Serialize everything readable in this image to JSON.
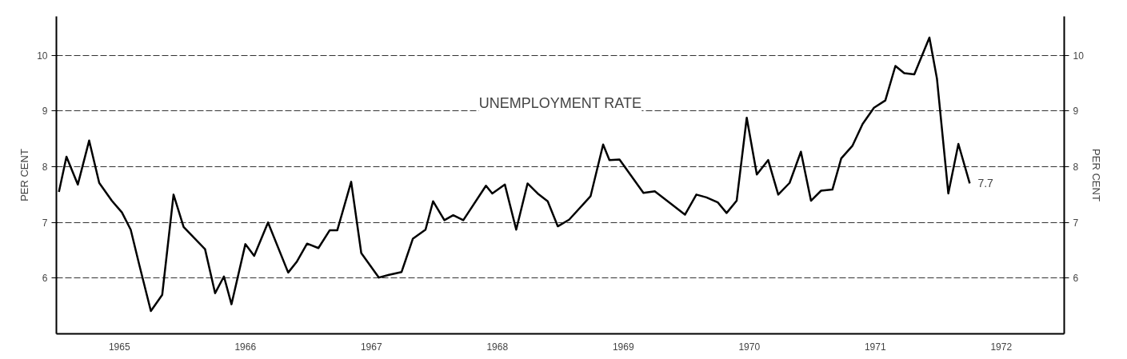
{
  "chart_data": {
    "type": "line",
    "ylabel": "PER CENT",
    "y2label": "PER CENT",
    "annotations": [
      "UNEMPLOYMENT RATE",
      {
        "text": "7.7",
        "x": 1972.25,
        "y": 7.7
      }
    ],
    "xlim": [
      1965,
      1973
    ],
    "xticks": [
      {
        "value": 1965.5,
        "label": "1965"
      },
      {
        "value": 1966.5,
        "label": "1966"
      },
      {
        "value": 1967.5,
        "label": "1967"
      },
      {
        "value": 1968.5,
        "label": "1968"
      },
      {
        "value": 1969.5,
        "label": "1969"
      },
      {
        "value": 1970.5,
        "label": "1970"
      },
      {
        "value": 1971.5,
        "label": "1971"
      },
      {
        "value": 1972.5,
        "label": "1972"
      }
    ],
    "ylim": [
      5,
      10.7
    ],
    "yticks": [
      6,
      7,
      8,
      9,
      10
    ],
    "y2lim": [
      5,
      10.7
    ],
    "y2ticks": [
      6,
      7,
      8,
      9,
      10
    ],
    "grid": "y",
    "marker": "none",
    "line_style": "solid",
    "series": [
      {
        "color": "#000000",
        "x": [
          1965.02,
          1965.08,
          1965.17,
          1965.26,
          1965.34,
          1965.44,
          1965.52,
          1965.59,
          1965.66,
          1965.75,
          1965.84,
          1965.93,
          1966.01,
          1966.18,
          1966.26,
          1966.33,
          1966.39,
          1966.5,
          1966.57,
          1966.68,
          1966.84,
          1966.91,
          1966.99,
          1967.08,
          1967.17,
          1967.23,
          1967.34,
          1967.42,
          1967.56,
          1967.64,
          1967.74,
          1967.83,
          1967.93,
          1967.99,
          1968.08,
          1968.15,
          1968.23,
          1968.41,
          1968.46,
          1968.56,
          1968.65,
          1968.74,
          1968.82,
          1968.9,
          1968.98,
          1969.07,
          1969.24,
          1969.34,
          1969.39,
          1969.47,
          1969.66,
          1969.75,
          1969.99,
          1970.08,
          1970.16,
          1970.25,
          1970.32,
          1970.4,
          1970.48,
          1970.56,
          1970.65,
          1970.73,
          1970.82,
          1970.91,
          1970.99,
          1971.07,
          1971.16,
          1971.23,
          1971.32,
          1971.4,
          1971.49,
          1971.58,
          1971.66,
          1971.73,
          1971.81,
          1971.93,
          1971.99,
          1972.08,
          1972.16,
          1972.25
        ],
        "values": [
          7.55,
          8.18,
          7.68,
          8.47,
          7.71,
          7.39,
          7.18,
          6.87,
          6.22,
          5.41,
          5.7,
          7.5,
          6.92,
          6.52,
          5.73,
          6.03,
          5.53,
          6.61,
          6.4,
          7.0,
          6.1,
          6.3,
          6.62,
          6.54,
          6.86,
          6.86,
          7.73,
          6.45,
          6.01,
          6.06,
          6.11,
          6.71,
          6.87,
          7.38,
          7.04,
          7.13,
          7.04,
          7.66,
          7.52,
          7.68,
          6.87,
          7.7,
          7.52,
          7.38,
          6.93,
          7.05,
          7.47,
          8.4,
          8.12,
          8.13,
          7.53,
          7.56,
          7.14,
          7.5,
          7.45,
          7.36,
          7.17,
          7.39,
          8.88,
          7.86,
          8.12,
          7.5,
          7.71,
          8.27,
          7.39,
          7.57,
          7.59,
          8.15,
          8.38,
          8.77,
          9.06,
          9.19,
          9.81,
          9.68,
          9.66,
          10.32,
          9.58,
          7.52,
          8.41,
          7.7
        ]
      }
    ]
  }
}
